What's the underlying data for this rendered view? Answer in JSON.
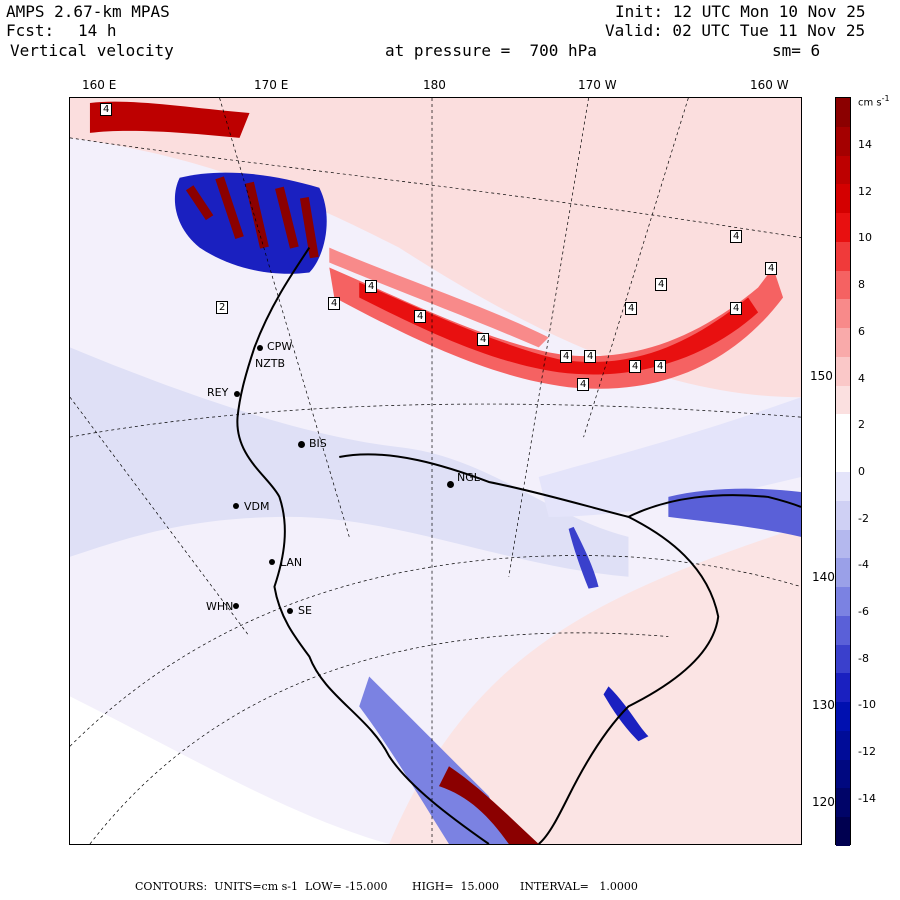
{
  "header": {
    "model": "AMPS 2.67-km MPAS",
    "forecast_label": "Fcst:",
    "forecast_hours": "14 h",
    "field": "Vertical velocity",
    "pressure_level": "at pressure =  700 hPa",
    "init": "Init: 12 UTC Mon 10 Nov 25",
    "valid": "Valid: 02 UTC Tue 11 Nov 25",
    "smoothing": "sm= 6"
  },
  "longitude_ticks_top": [
    "160 E",
    "170 E",
    "180",
    "170 W",
    "160 W"
  ],
  "longitude_ticks_right": [
    "150 W",
    "140 W",
    "130 W",
    "120 W"
  ],
  "colorbar": {
    "units": "cm s",
    "units_exp": "-1",
    "labels": [
      "14",
      "12",
      "10",
      "8",
      "6",
      "4",
      "2",
      "0",
      "-2",
      "-4",
      "-6",
      "-8",
      "-10",
      "-12",
      "-14"
    ],
    "colors": [
      "#8b0000",
      "#a40000",
      "#bd0000",
      "#d40000",
      "#e81010",
      "#f03a3a",
      "#f56262",
      "#f88a8a",
      "#f9aaaa",
      "#fac8c8",
      "#fbe0e0",
      "#ffffff",
      "#ffffff",
      "#e4e4fa",
      "#cfd0f4",
      "#b4b8ee",
      "#9aa0e8",
      "#7b82e2",
      "#5a60d8",
      "#3a40cc",
      "#1a20c0",
      "#0010b0",
      "#000c98",
      "#000880",
      "#000468",
      "#000050"
    ]
  },
  "stations": [
    {
      "name": "CPW"
    },
    {
      "name": "NZTB"
    },
    {
      "name": "REY"
    },
    {
      "name": "BIS"
    },
    {
      "name": "NGL"
    },
    {
      "name": "VDM"
    },
    {
      "name": "LAN"
    },
    {
      "name": "WHN"
    },
    {
      "name": "SE"
    }
  ],
  "extrema_labels": [
    "4",
    "2",
    "4",
    "4",
    "4",
    "4",
    "4",
    "4",
    "4",
    "4",
    "4",
    "4",
    "4",
    "4",
    "4",
    "4"
  ],
  "footer": "CONTOURS:  UNITS=cm s-1  LOW= -15.000       HIGH=  15.000      INTERVAL=   1.0000"
}
